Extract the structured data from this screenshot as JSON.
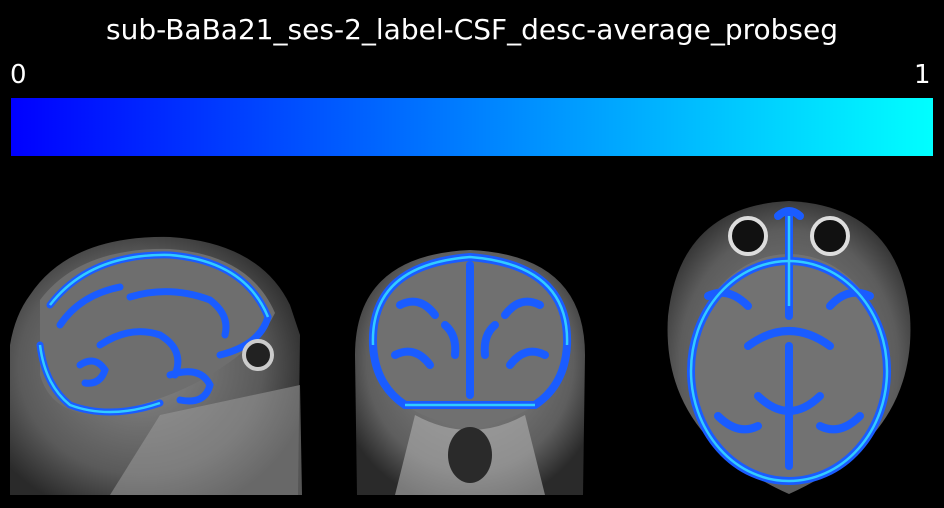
{
  "title": "sub-BaBa21_ses-2_label-CSF_desc-average_probseg",
  "colorbar": {
    "min_label": "0",
    "max_label": "1",
    "color_low": "#0000ff",
    "color_high": "#00ffff",
    "colormap": "blue-to-cyan"
  },
  "views": [
    {
      "name": "sagittal",
      "overlay_color": "#1a5cff"
    },
    {
      "name": "coronal",
      "overlay_color": "#1a5cff"
    },
    {
      "name": "axial",
      "overlay_color": "#1a5cff"
    }
  ]
}
